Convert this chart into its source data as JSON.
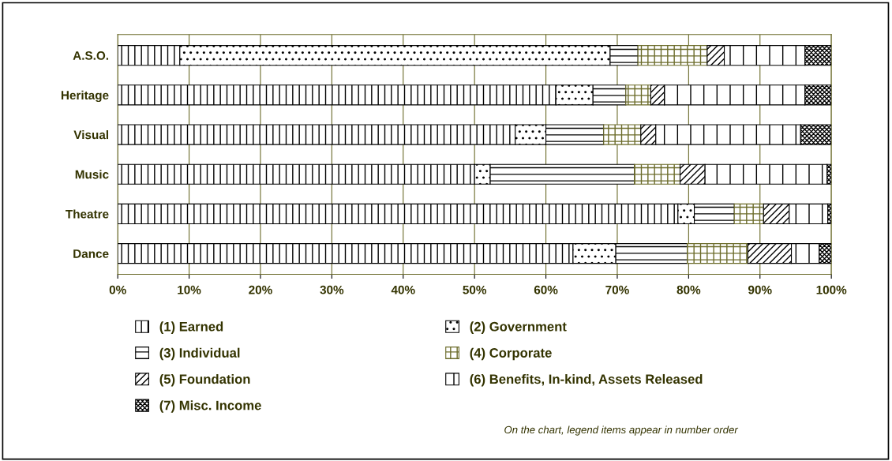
{
  "chart_data": {
    "type": "bar",
    "orientation": "horizontal",
    "stacked": true,
    "categories": [
      "A.S.O.",
      "Heritage",
      "Visual",
      "Music",
      "Theatre",
      "Dance"
    ],
    "series": [
      {
        "name": "(1) Earned",
        "color": "#000000",
        "values": [
          8.7,
          61.4,
          55.7,
          50.0,
          78.5,
          63.8
        ]
      },
      {
        "name": "(2) Government",
        "color": "#000000",
        "values": [
          60.3,
          5.2,
          4.3,
          2.2,
          2.3,
          6.0
        ]
      },
      {
        "name": "(3) Individual",
        "color": "#000000",
        "values": [
          3.9,
          4.6,
          8.1,
          20.2,
          5.6,
          10.0
        ]
      },
      {
        "name": "(4) Corporate",
        "color": "#6b6b2a",
        "values": [
          9.7,
          3.5,
          5.2,
          6.4,
          4.1,
          8.5
        ]
      },
      {
        "name": "(5) Foundation",
        "color": "#000000",
        "values": [
          2.4,
          1.9,
          2.1,
          3.5,
          3.6,
          6.1
        ]
      },
      {
        "name": "(6) Benefits, In-kind, Assets Released",
        "color": "#000000",
        "values": [
          11.3,
          19.7,
          20.3,
          17.1,
          5.4,
          3.9
        ]
      },
      {
        "name": "(7) Misc. Income",
        "color": "#000000",
        "values": [
          3.7,
          3.7,
          4.3,
          0.6,
          0.5,
          1.7
        ]
      }
    ],
    "xlim": [
      0,
      100
    ],
    "xticks": [
      {
        "value": 0,
        "label": "0%"
      },
      {
        "value": 10,
        "label": "10%"
      },
      {
        "value": 20,
        "label": "20%"
      },
      {
        "value": 30,
        "label": "30%"
      },
      {
        "value": 40,
        "label": "40%"
      },
      {
        "value": 50,
        "label": "50%"
      },
      {
        "value": 60,
        "label": "60%"
      },
      {
        "value": 70,
        "label": "70%"
      },
      {
        "value": 80,
        "label": "80%"
      },
      {
        "value": 90,
        "label": "90%"
      },
      {
        "value": 100,
        "label": "100%"
      }
    ],
    "grid": "x",
    "legend": "bottom",
    "annotations": [
      "On the chart, legend items appear in number order"
    ]
  }
}
